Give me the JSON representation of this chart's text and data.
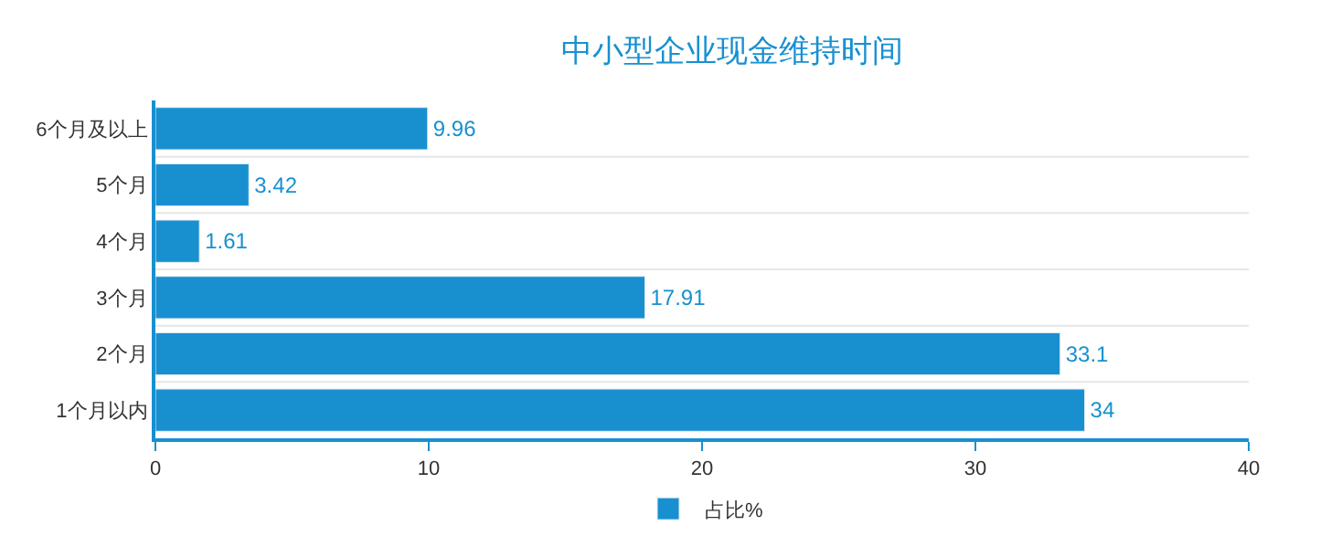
{
  "chart_data": {
    "type": "bar",
    "orientation": "horizontal",
    "title": "中小型企业现金维持时间",
    "categories": [
      "6个月及以上",
      "5个月",
      "4个月",
      "3个月",
      "2个月",
      "1个月以内"
    ],
    "series": [
      {
        "name": "占比%",
        "color": "#1890d0",
        "values": [
          9.96,
          3.42,
          1.61,
          17.91,
          33.1,
          34
        ]
      }
    ],
    "xlim": [
      0,
      40
    ],
    "xticks": [
      0,
      10,
      20,
      30,
      40
    ],
    "data_labels": true,
    "grid": "y",
    "legend": "bottom"
  }
}
